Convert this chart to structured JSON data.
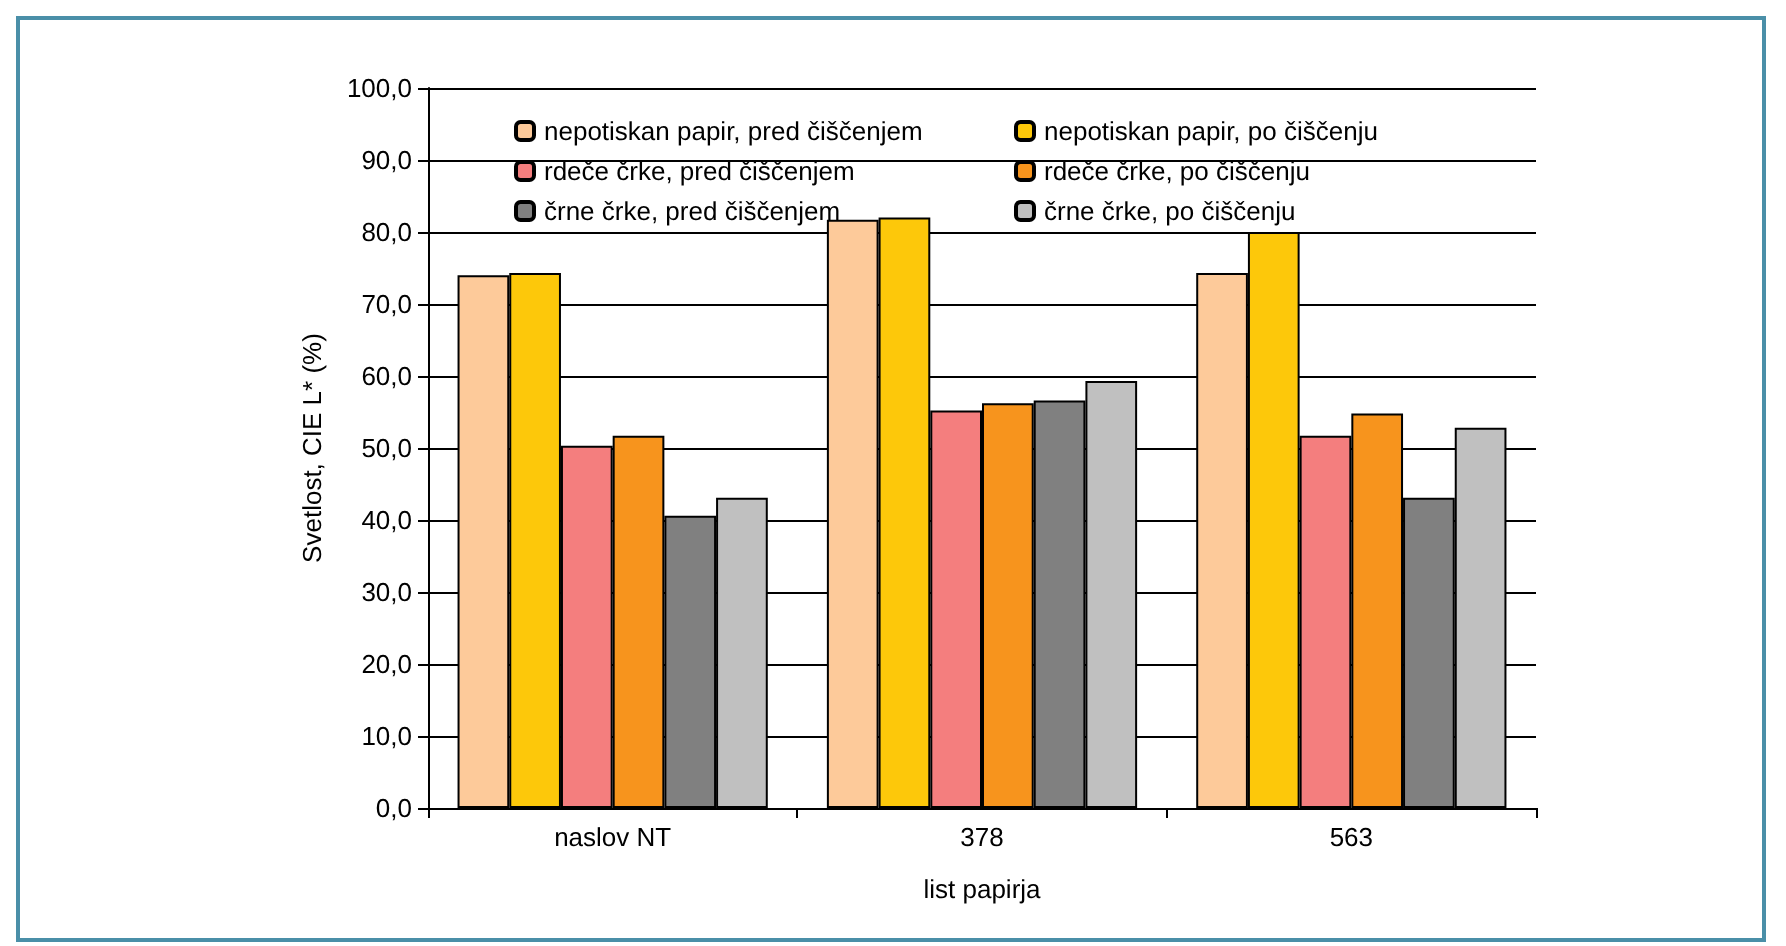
{
  "chart_data": {
    "type": "bar",
    "xlabel": "list papirja",
    "ylabel": "Svetlost, CIE L* (%)",
    "categories": [
      "naslov NT",
      "378",
      "563"
    ],
    "series": [
      {
        "name": "nepotiskan papir, pred čiščenjem",
        "color": "#fdca9a",
        "values": [
          74.0,
          81.7,
          74.3
        ]
      },
      {
        "name": "nepotiskan papir, po čiščenju",
        "color": "#fdc80a",
        "values": [
          74.3,
          82.0,
          80.0
        ]
      },
      {
        "name": "rdeče črke, pred čiščenjem",
        "color": "#f47e7e",
        "values": [
          50.3,
          55.2,
          51.7
        ]
      },
      {
        "name": "rdeče črke, po čiščenju",
        "color": "#f7941d",
        "values": [
          51.7,
          56.2,
          54.8
        ]
      },
      {
        "name": "črne črke, pred čiščenjem",
        "color": "#808080",
        "values": [
          40.6,
          56.6,
          43.1
        ]
      },
      {
        "name": "črne črke, po čiščenju",
        "color": "#c0c0c0",
        "values": [
          43.1,
          59.3,
          52.8
        ]
      }
    ],
    "ylim": [
      0,
      100
    ],
    "yticks": [
      {
        "value": 0,
        "label": "0,0"
      },
      {
        "value": 10,
        "label": "10,0"
      },
      {
        "value": 20,
        "label": "20,0"
      },
      {
        "value": 30,
        "label": "30,0"
      },
      {
        "value": 40,
        "label": "40,0"
      },
      {
        "value": 50,
        "label": "50,0"
      },
      {
        "value": 60,
        "label": "60,0"
      },
      {
        "value": 70,
        "label": "70,0"
      },
      {
        "value": 80,
        "label": "80,0"
      },
      {
        "value": 90,
        "label": "90,0"
      },
      {
        "value": 100,
        "label": "100,0"
      }
    ],
    "grid": "y",
    "legend": "top"
  }
}
